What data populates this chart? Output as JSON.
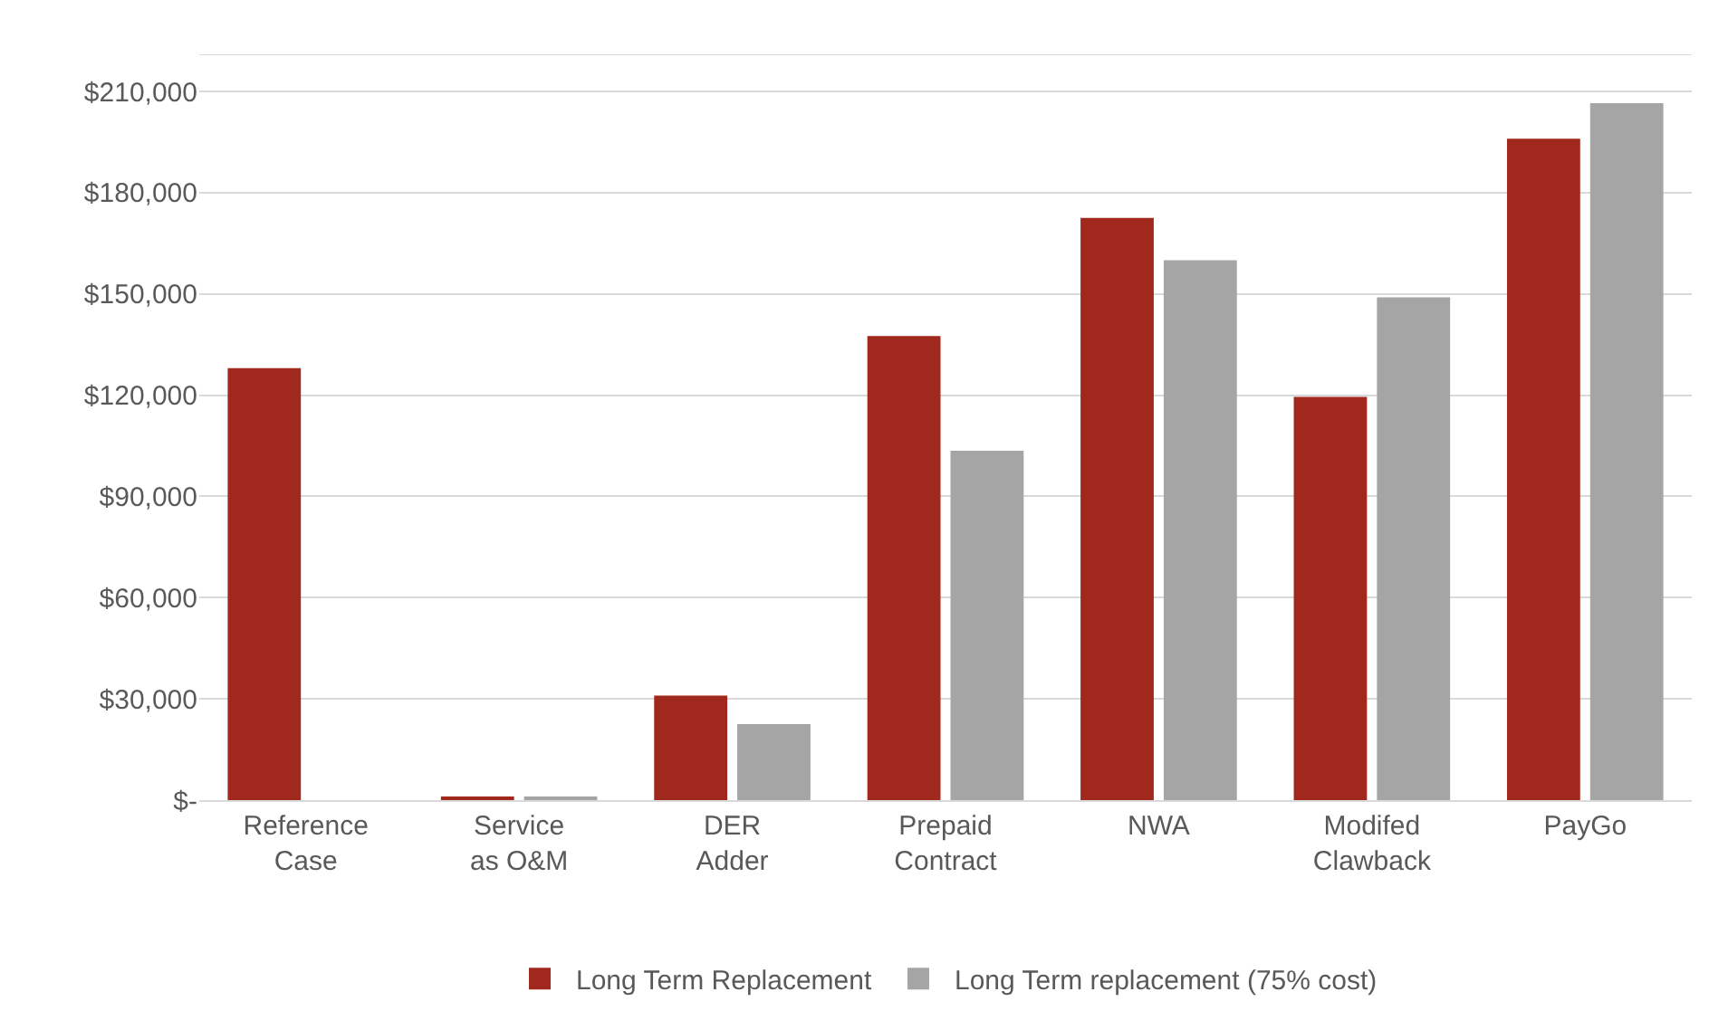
{
  "chart_data": {
    "type": "bar",
    "categories": [
      "Reference Case",
      "Service as O&M",
      "DER Adder",
      "Prepaid Contract",
      "NWA",
      "Modifed Clawback",
      "PayGo"
    ],
    "series": [
      {
        "name": "Long Term Replacement",
        "color": "#a0281c",
        "values": [
          128000,
          1000,
          31000,
          137500,
          172500,
          119500,
          196000
        ]
      },
      {
        "name": "Long Term replacement (75% cost)",
        "color": "#a5a5a5",
        "values": [
          null,
          1000,
          22500,
          103500,
          160000,
          149000,
          206500
        ]
      }
    ],
    "ylim": [
      0,
      221000
    ],
    "yticks": [
      {
        "value": 0,
        "label": "$-"
      },
      {
        "value": 30000,
        "label": "$30,000"
      },
      {
        "value": 60000,
        "label": "$60,000"
      },
      {
        "value": 90000,
        "label": "$90,000"
      },
      {
        "value": 120000,
        "label": "$120,000"
      },
      {
        "value": 150000,
        "label": "$150,000"
      },
      {
        "value": 180000,
        "label": "$180,000"
      },
      {
        "value": 210000,
        "label": "$210,000"
      }
    ],
    "grid": "y",
    "legend": "bottom"
  }
}
